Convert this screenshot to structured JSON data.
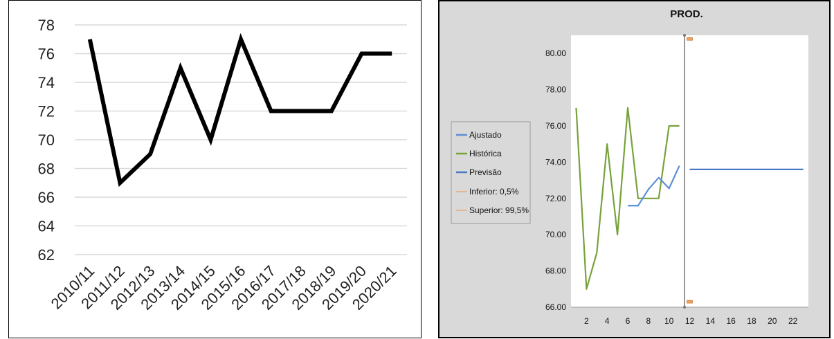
{
  "chart_data": [
    {
      "type": "line",
      "title": "",
      "xlabel": "",
      "ylabel": "",
      "categories": [
        "2010/11",
        "2011/12",
        "2012/13",
        "2013/14",
        "2014/15",
        "2015/16",
        "2016/17",
        "2017/18",
        "2018/19",
        "2019/20",
        "2020/21"
      ],
      "yticks": [
        "62",
        "64",
        "66",
        "68",
        "70",
        "72",
        "74",
        "76",
        "78"
      ],
      "ylim": [
        62,
        78
      ],
      "grid": true,
      "series": [
        {
          "values": [
            77,
            67,
            69,
            75,
            70,
            77,
            72,
            72,
            72,
            76,
            76
          ],
          "color": "#000000"
        }
      ]
    },
    {
      "type": "line",
      "title": "PROD.",
      "xlabel": "",
      "ylabel": "",
      "xticks": [
        "2",
        "4",
        "6",
        "8",
        "10",
        "12",
        "14",
        "16",
        "18",
        "20",
        "22"
      ],
      "yticks": [
        "66.00",
        "68.00",
        "70.00",
        "72.00",
        "74.00",
        "76.00",
        "78.00",
        "80.00"
      ],
      "xlim": [
        0.5,
        23.5
      ],
      "ylim": [
        66,
        81
      ],
      "forecast_divider_x": 11.5,
      "grid": false,
      "legend_position": "left",
      "series": [
        {
          "name": "Ajustado",
          "color": "#5b8fd4",
          "points": [
            [
              6,
              71.6
            ],
            [
              7,
              71.6
            ],
            [
              8,
              72.5
            ],
            [
              9,
              73.15
            ],
            [
              10,
              72.55
            ],
            [
              11,
              73.8
            ]
          ]
        },
        {
          "name": "Histórica",
          "color": "#77a23a",
          "points": [
            [
              1,
              77
            ],
            [
              2,
              67
            ],
            [
              3,
              69
            ],
            [
              4,
              75
            ],
            [
              5,
              70
            ],
            [
              6,
              77
            ],
            [
              7,
              72
            ],
            [
              8,
              72
            ],
            [
              9,
              72
            ],
            [
              10,
              76
            ],
            [
              11,
              76
            ]
          ]
        },
        {
          "name": "Previsão",
          "color": "#4a78c2",
          "points": [
            [
              12,
              73.6
            ],
            [
              13,
              73.6
            ],
            [
              14,
              73.6
            ],
            [
              15,
              73.6
            ],
            [
              16,
              73.6
            ],
            [
              17,
              73.6
            ],
            [
              18,
              73.6
            ],
            [
              19,
              73.6
            ],
            [
              20,
              73.6
            ],
            [
              21,
              73.6
            ],
            [
              22,
              73.6
            ],
            [
              23,
              73.6
            ]
          ]
        },
        {
          "name": "Inferior: 0,5%",
          "color": "#f0a060",
          "points": [
            [
              12,
              66.3
            ]
          ]
        },
        {
          "name": "Superior: 99,5%",
          "color": "#f0a060",
          "points": [
            [
              12,
              80.8
            ]
          ]
        }
      ]
    }
  ]
}
